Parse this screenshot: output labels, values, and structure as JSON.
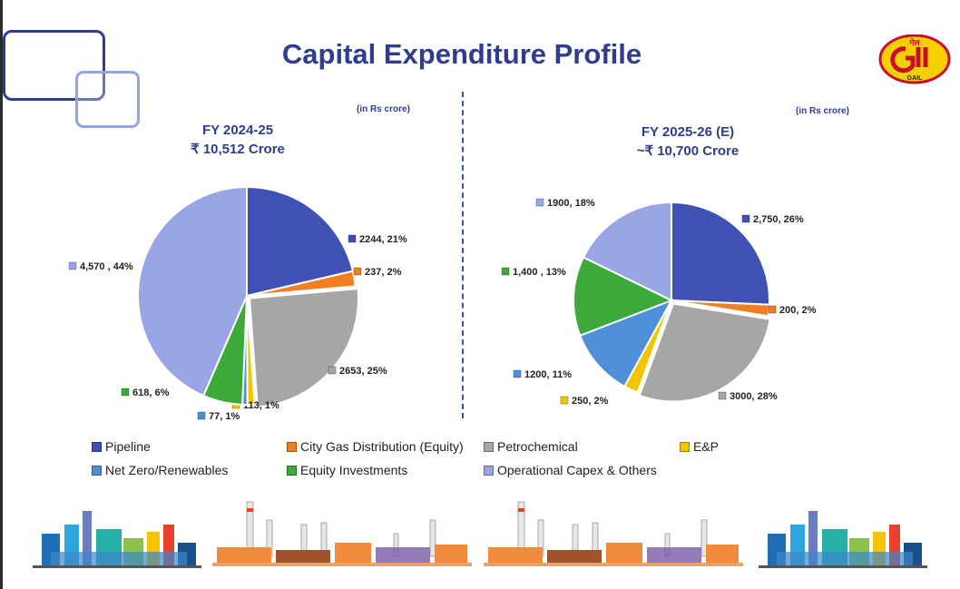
{
  "page": {
    "title": "Capital Expenditure Profile",
    "logo_text": "GAIL",
    "logo_hindi": "गेल"
  },
  "chart_data": [
    {
      "type": "pie",
      "title": "FY 2024-25",
      "subtitle": "₹ 10,512 Crore",
      "unit_note": "(in Rs crore)",
      "categories": [
        "Pipeline",
        "City Gas Distribution (Equity)",
        "Petrochemical",
        "E&P",
        "Net Zero/Renewables",
        "Equity Investments",
        "Operational Capex & Others"
      ],
      "values": [
        2244,
        237,
        2653,
        113,
        77,
        618,
        4570
      ],
      "data_labels": [
        "2244, 21%",
        "237, 2%",
        "2653, 25%",
        "113, 1%",
        "77, 1%",
        "618, 6%",
        "4,570 , 44%"
      ]
    },
    {
      "type": "pie",
      "title": "FY 2025-26 (E)",
      "subtitle": "~₹ 10,700  Crore",
      "unit_note": "(in Rs crore)",
      "categories": [
        "Pipeline",
        "City Gas Distribution (Equity)",
        "Petrochemical",
        "E&P",
        "Net Zero/Renewables",
        "Equity Investments",
        "Operational Capex & Others"
      ],
      "values": [
        2750,
        200,
        3000,
        250,
        1200,
        1400,
        1900
      ],
      "data_labels": [
        "2,750, 26%",
        "200, 2%",
        "3000, 28%",
        "250, 2%",
        "1200, 11%",
        "1,400 , 13%",
        "1900, 18%"
      ]
    }
  ],
  "legend": [
    {
      "label": "Pipeline",
      "color": "#3F51B5"
    },
    {
      "label": "City Gas Distribution (Equity)",
      "color": "#F07F22"
    },
    {
      "label": "Petrochemical",
      "color": "#A6A6A6"
    },
    {
      "label": "E&P",
      "color": "#F5C400"
    },
    {
      "label": "Net Zero/Renewables",
      "color": "#4F8FD8"
    },
    {
      "label": "Equity Investments",
      "color": "#3BAA3B"
    },
    {
      "label": "Operational Capex & Others",
      "color": "#9AA5E6"
    }
  ]
}
